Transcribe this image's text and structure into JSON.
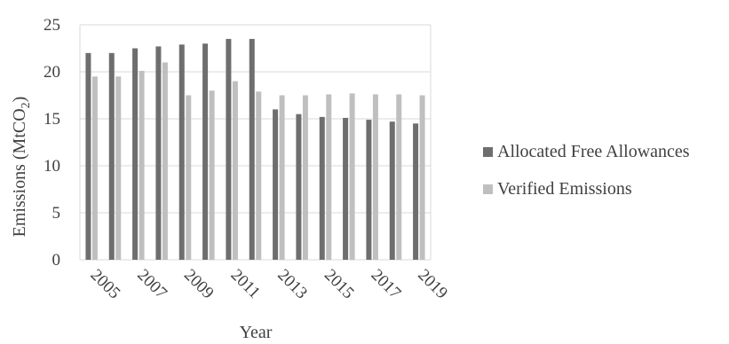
{
  "chart_data": {
    "type": "bar",
    "x": [
      2005,
      2006,
      2007,
      2008,
      2009,
      2010,
      2011,
      2012,
      2013,
      2014,
      2015,
      2016,
      2017,
      2018,
      2019
    ],
    "x_tick_labels": [
      "2005",
      "2007",
      "2009",
      "2011",
      "2013",
      "2015",
      "2017",
      "2019"
    ],
    "series": [
      {
        "name": "Allocated Free Allowances",
        "color": "#6e6e6e",
        "values": [
          22.0,
          22.0,
          22.5,
          22.7,
          22.9,
          23.0,
          23.5,
          23.5,
          16.0,
          15.5,
          15.2,
          15.1,
          14.9,
          14.7,
          14.5
        ]
      },
      {
        "name": "Verified Emissions",
        "color": "#bfbfbf",
        "values": [
          19.5,
          19.5,
          20.1,
          21.0,
          17.5,
          18.0,
          19.0,
          17.9,
          17.5,
          17.5,
          17.6,
          17.7,
          17.6,
          17.6,
          17.5
        ]
      }
    ],
    "ylim": [
      0,
      25
    ],
    "yticks": [
      0,
      5,
      10,
      15,
      20,
      25
    ],
    "ylabel": "Emissions (MtCO",
    "ylabel_subscript": "2",
    "ylabel_suffix": ")",
    "xlabel": "Year",
    "grid": "horizontal",
    "legend_position": "right",
    "gridline_color": "#d9d9d9"
  }
}
